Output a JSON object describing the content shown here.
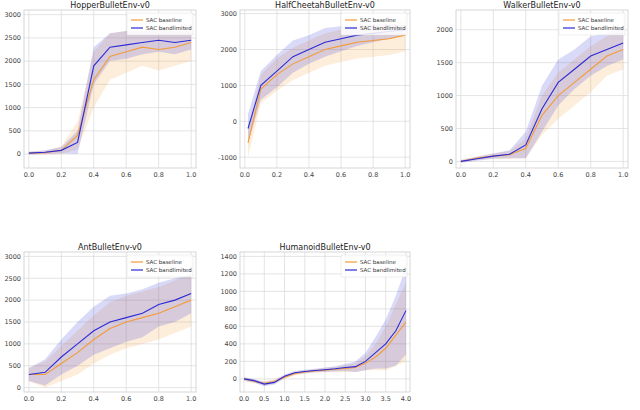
{
  "chart_data": [
    {
      "type": "line",
      "title": "HopperBulletEnv-v0",
      "grid": true,
      "legend": "upper right",
      "x": [
        0,
        0.1,
        0.2,
        0.3,
        0.4,
        0.5,
        0.6,
        0.7,
        0.8,
        0.9,
        1.0
      ],
      "xlim": [
        -0.03,
        1.03
      ],
      "xticks": [
        {
          "value": 0,
          "label": "0.0"
        },
        {
          "value": 0.2,
          "label": "0.2"
        },
        {
          "value": 0.4,
          "label": "0.4"
        },
        {
          "value": 0.6,
          "label": "0.6"
        },
        {
          "value": 0.8,
          "label": "0.8"
        },
        {
          "value": 1.0,
          "label": "1.0"
        }
      ],
      "ylim": [
        -300,
        3100
      ],
      "yticks": [
        0,
        500,
        1000,
        1500,
        2000,
        2500,
        3000
      ],
      "series": [
        {
          "name": "SAC baseline",
          "color": "#f39c38",
          "values": [
            20,
            30,
            80,
            400,
            1600,
            2100,
            2200,
            2300,
            2250,
            2300,
            2400
          ],
          "error": [
            30,
            40,
            80,
            300,
            600,
            500,
            450,
            400,
            450,
            400,
            400
          ]
        },
        {
          "name": "SAC bandlimited",
          "color": "#2b2bd6",
          "values": [
            20,
            40,
            80,
            250,
            1900,
            2300,
            2350,
            2400,
            2450,
            2400,
            2450
          ],
          "error": [
            30,
            40,
            70,
            250,
            400,
            300,
            300,
            250,
            250,
            250,
            200
          ]
        }
      ]
    },
    {
      "type": "line",
      "title": "HalfCheetahBulletEnv-v0",
      "grid": true,
      "legend": "upper right",
      "x": [
        0.02,
        0.1,
        0.2,
        0.3,
        0.4,
        0.5,
        0.6,
        0.7,
        0.8,
        0.9,
        1.0
      ],
      "xlim": [
        -0.03,
        1.03
      ],
      "xticks": [
        {
          "value": 0,
          "label": "0.0"
        },
        {
          "value": 0.2,
          "label": "0.2"
        },
        {
          "value": 0.4,
          "label": "0.4"
        },
        {
          "value": 0.6,
          "label": "0.6"
        },
        {
          "value": 0.8,
          "label": "0.8"
        },
        {
          "value": 1.0,
          "label": "1.0"
        }
      ],
      "ylim": [
        -1300,
        3100
      ],
      "yticks": [
        -1000,
        0,
        1000,
        2000,
        3000
      ],
      "series": [
        {
          "name": "SAC baseline",
          "color": "#f39c38",
          "values": [
            -600,
            900,
            1300,
            1600,
            1800,
            2000,
            2100,
            2200,
            2250,
            2300,
            2400
          ],
          "error": [
            400,
            400,
            450,
            450,
            450,
            450,
            450,
            450,
            450,
            450,
            450
          ]
        },
        {
          "name": "SAC bandlimited",
          "color": "#2b2bd6",
          "values": [
            -200,
            1000,
            1400,
            1800,
            2000,
            2200,
            2300,
            2400,
            2450,
            2500,
            2550
          ],
          "error": [
            400,
            400,
            450,
            450,
            400,
            400,
            350,
            300,
            250,
            200,
            150
          ]
        }
      ]
    },
    {
      "type": "line",
      "title": "WalkerBulletEnv-v0",
      "grid": true,
      "legend": "upper right",
      "x": [
        0,
        0.1,
        0.2,
        0.3,
        0.4,
        0.5,
        0.6,
        0.7,
        0.8,
        0.9,
        1.0
      ],
      "xlim": [
        -0.03,
        1.03
      ],
      "xticks": [
        {
          "value": 0,
          "label": "0.0"
        },
        {
          "value": 0.2,
          "label": "0.2"
        },
        {
          "value": 0.4,
          "label": "0.4"
        },
        {
          "value": 0.6,
          "label": "0.6"
        },
        {
          "value": 0.8,
          "label": "0.8"
        },
        {
          "value": 1.0,
          "label": "1.0"
        }
      ],
      "ylim": [
        -100,
        2300
      ],
      "yticks": [
        0,
        500,
        1000,
        1500,
        2000
      ],
      "series": [
        {
          "name": "SAC baseline",
          "color": "#f39c38",
          "values": [
            0,
            50,
            80,
            100,
            200,
            700,
            1000,
            1200,
            1400,
            1600,
            1700
          ],
          "error": [
            20,
            30,
            40,
            60,
            150,
            300,
            350,
            350,
            350,
            300,
            300
          ]
        },
        {
          "name": "SAC bandlimited",
          "color": "#2b2bd6",
          "values": [
            0,
            40,
            80,
            110,
            250,
            800,
            1200,
            1400,
            1600,
            1700,
            1800
          ],
          "error": [
            20,
            30,
            40,
            60,
            200,
            350,
            350,
            300,
            300,
            250,
            250
          ]
        }
      ]
    },
    {
      "type": "line",
      "title": "AntBulletEnv-v0",
      "grid": true,
      "legend": "upper right",
      "x": [
        0,
        0.1,
        0.2,
        0.3,
        0.4,
        0.5,
        0.6,
        0.7,
        0.8,
        0.9,
        1.0
      ],
      "xlim": [
        -0.03,
        1.03
      ],
      "xticks": [
        {
          "value": 0,
          "label": "0.0"
        },
        {
          "value": 0.2,
          "label": "0.2"
        },
        {
          "value": 0.4,
          "label": "0.4"
        },
        {
          "value": 0.6,
          "label": "0.6"
        },
        {
          "value": 0.8,
          "label": "0.8"
        },
        {
          "value": 1.0,
          "label": "1.0"
        }
      ],
      "ylim": [
        -100,
        3100
      ],
      "yticks": [
        0,
        500,
        1000,
        1500,
        2000,
        2500,
        3000
      ],
      "series": [
        {
          "name": "SAC baseline",
          "color": "#f39c38",
          "values": [
            300,
            300,
            550,
            800,
            1100,
            1350,
            1500,
            1600,
            1700,
            1850,
            2000
          ],
          "error": [
            150,
            300,
            400,
            500,
            550,
            600,
            600,
            600,
            600,
            600,
            600
          ]
        },
        {
          "name": "SAC bandlimited",
          "color": "#2b2bd6",
          "values": [
            300,
            350,
            700,
            1000,
            1300,
            1500,
            1600,
            1700,
            1900,
            2000,
            2150
          ],
          "error": [
            150,
            300,
            400,
            500,
            550,
            600,
            550,
            550,
            500,
            500,
            450
          ]
        }
      ]
    },
    {
      "type": "line",
      "title": "HumanoidBulletEnv-v0",
      "grid": true,
      "legend": "upper right",
      "x": [
        0,
        0.25,
        0.5,
        0.75,
        1.0,
        1.25,
        1.5,
        1.75,
        2.0,
        2.25,
        2.5,
        2.75,
        3.0,
        3.25,
        3.5,
        3.75,
        4.0
      ],
      "xlim": [
        -0.1,
        4.1
      ],
      "xticks": [
        {
          "value": 0,
          "label": "0.0"
        },
        {
          "value": 0.5,
          "label": "0.5"
        },
        {
          "value": 1.0,
          "label": "1.0"
        },
        {
          "value": 1.5,
          "label": "1.5"
        },
        {
          "value": 2.0,
          "label": "2.0"
        },
        {
          "value": 2.5,
          "label": "2.5"
        },
        {
          "value": 3.0,
          "label": "3.0"
        },
        {
          "value": 3.5,
          "label": "3.5"
        },
        {
          "value": 4.0,
          "label": "4.0"
        }
      ],
      "ylim": [
        -150,
        1450
      ],
      "yticks": [
        0,
        200,
        400,
        600,
        800,
        1000,
        1200,
        1400
      ],
      "series": [
        {
          "name": "SAC baseline",
          "color": "#f39c38",
          "values": [
            0,
            -30,
            -50,
            -30,
            20,
            60,
            80,
            90,
            100,
            110,
            120,
            130,
            180,
            250,
            350,
            500,
            650
          ],
          "error": [
            20,
            20,
            25,
            25,
            20,
            20,
            20,
            20,
            25,
            30,
            40,
            50,
            80,
            150,
            250,
            350,
            450
          ]
        },
        {
          "name": "SAC bandlimited",
          "color": "#2b2bd6",
          "values": [
            0,
            -20,
            -60,
            -40,
            30,
            70,
            85,
            95,
            105,
            115,
            130,
            140,
            200,
            300,
            400,
            550,
            780
          ],
          "error": [
            20,
            20,
            25,
            25,
            20,
            20,
            20,
            20,
            25,
            30,
            40,
            60,
            100,
            180,
            280,
            400,
            500
          ]
        }
      ]
    }
  ]
}
